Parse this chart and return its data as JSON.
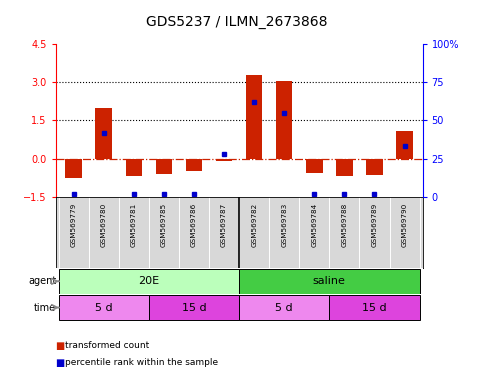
{
  "title": "GDS5237 / ILMN_2673868",
  "samples": [
    "GSM569779",
    "GSM569780",
    "GSM569781",
    "GSM569785",
    "GSM569786",
    "GSM569787",
    "GSM569782",
    "GSM569783",
    "GSM569784",
    "GSM569788",
    "GSM569789",
    "GSM569790"
  ],
  "transformed_count": [
    -0.75,
    2.0,
    -0.7,
    -0.6,
    -0.5,
    -0.1,
    3.3,
    3.05,
    -0.55,
    -0.7,
    -0.65,
    1.1
  ],
  "percentile_rank": [
    2,
    42,
    2,
    2,
    2,
    28,
    62,
    55,
    2,
    2,
    2,
    33
  ],
  "ylim_left": [
    -1.5,
    4.5
  ],
  "ylim_right": [
    0,
    100
  ],
  "yticks_left": [
    -1.5,
    0,
    1.5,
    3,
    4.5
  ],
  "yticks_right": [
    0,
    25,
    50,
    75,
    100
  ],
  "hlines_dotted": [
    1.5,
    3.0
  ],
  "hline_zero": 0,
  "bar_color": "#cc2200",
  "dot_color": "#0000cc",
  "agent_groups": [
    {
      "label": "20E",
      "start": 0,
      "end": 5,
      "color": "#bbffbb"
    },
    {
      "label": "saline",
      "start": 6,
      "end": 11,
      "color": "#44cc44"
    }
  ],
  "time_groups": [
    {
      "label": "5 d",
      "start": 0,
      "end": 2,
      "color": "#ee88ee"
    },
    {
      "label": "15 d",
      "start": 3,
      "end": 5,
      "color": "#dd44dd"
    },
    {
      "label": "5 d",
      "start": 6,
      "end": 8,
      "color": "#ee88ee"
    },
    {
      "label": "15 d",
      "start": 9,
      "end": 11,
      "color": "#dd44dd"
    }
  ],
  "legend_items": [
    {
      "label": "transformed count",
      "color": "#cc2200"
    },
    {
      "label": "percentile rank within the sample",
      "color": "#0000cc"
    }
  ],
  "background_color": "#ffffff",
  "zero_line_color": "#cc2200",
  "title_fontsize": 10
}
